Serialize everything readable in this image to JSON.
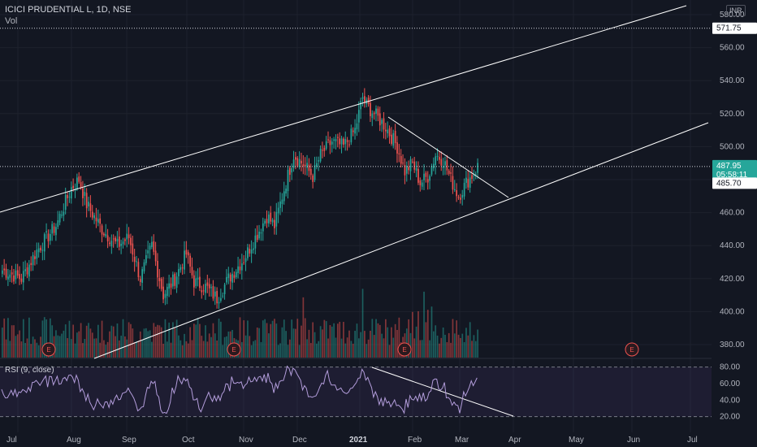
{
  "header": {
    "symbol_title": "ICICI PRUDENTIAL L, 1D, NSE",
    "volume_label": "Vol",
    "currency": "INR"
  },
  "rsi": {
    "label": "RSI (9, close)",
    "ticks": [
      "80.00",
      "60.00",
      "40.00",
      "20.00"
    ]
  },
  "price_axis": {
    "ticks": [
      "580.00",
      "560.00",
      "540.00",
      "520.00",
      "500.00",
      "460.00",
      "440.00",
      "420.00",
      "400.00",
      "380.00"
    ],
    "marker_top": "571.75",
    "marker_last": "487.95",
    "marker_countdown": "05:58:11",
    "marker_low": "485.70"
  },
  "time_axis": {
    "labels": [
      "Jul",
      "Aug",
      "Sep",
      "Oct",
      "Nov",
      "Dec",
      "2021",
      "Feb",
      "Mar",
      "Apr",
      "May",
      "Jun",
      "Jul"
    ]
  },
  "earnings_marker": "E",
  "colors": {
    "background": "#131722",
    "up": "#26a69a",
    "down": "#ef5350",
    "rsi_band": "#7e57c2",
    "line": "#ffffff"
  },
  "chart_data": {
    "type": "candlestick",
    "price_range": [
      370,
      590
    ],
    "rsi_range": [
      20,
      80
    ],
    "horizontal_levels": [
      571.75,
      487.95
    ],
    "rsi_bands": [
      80,
      20
    ]
  }
}
